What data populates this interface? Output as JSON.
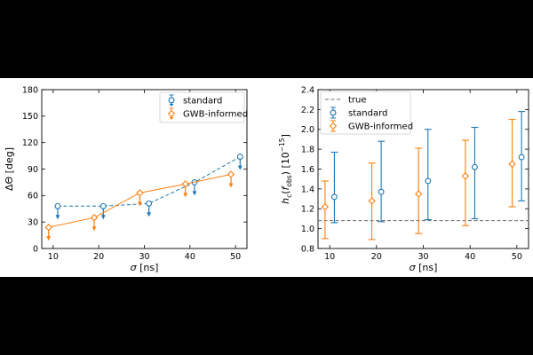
{
  "colors": {
    "standard": "#1f77b4",
    "gwb": "#ff7f0e",
    "true_line": "#666666"
  },
  "chart_data": [
    {
      "type": "line",
      "title": "",
      "xlabel": "σ [ns]",
      "ylabel": "ΔΘ [deg]",
      "xlim": [
        7.5,
        52.5
      ],
      "ylim": [
        0,
        180
      ],
      "xticks": [
        10,
        20,
        30,
        40,
        50
      ],
      "yticks": [
        0,
        30,
        60,
        90,
        120,
        150,
        180
      ],
      "legend": {
        "position": "top-right",
        "entries": [
          "standard",
          "GWB-informed"
        ]
      },
      "upper_limits": true,
      "series": [
        {
          "name": "standard",
          "style": "dashed",
          "x": [
            11,
            21,
            31,
            41,
            51
          ],
          "y": [
            48,
            48,
            51,
            75,
            104
          ]
        },
        {
          "name": "GWB-informed",
          "style": "solid",
          "x": [
            9,
            19,
            29,
            39,
            49
          ],
          "y": [
            24,
            35,
            63,
            73,
            84
          ]
        }
      ]
    },
    {
      "type": "errorbar",
      "title": "",
      "xlabel": "σ [ns]",
      "ylabel": "h_c(f_obs) [10^-15]",
      "xlim": [
        7.5,
        52.5
      ],
      "ylim": [
        0.8,
        2.4
      ],
      "xticks": [
        10,
        20,
        30,
        40,
        50
      ],
      "yticks": [
        0.8,
        1.0,
        1.2,
        1.4,
        1.6,
        1.8,
        2.0,
        2.2,
        2.4
      ],
      "true_value": 1.08,
      "legend": {
        "position": "top-left",
        "entries": [
          "true",
          "standard",
          "GWB-informed"
        ]
      },
      "series": [
        {
          "name": "standard",
          "x": [
            11,
            21,
            31,
            41,
            51
          ],
          "y": [
            1.32,
            1.37,
            1.48,
            1.62,
            1.72
          ],
          "lower": [
            1.06,
            1.07,
            1.09,
            1.1,
            1.28
          ],
          "upper": [
            1.77,
            1.88,
            2.0,
            2.02,
            2.18
          ]
        },
        {
          "name": "GWB-informed",
          "x": [
            9,
            19,
            29,
            39,
            49
          ],
          "y": [
            1.22,
            1.28,
            1.35,
            1.53,
            1.65
          ],
          "lower": [
            0.9,
            0.89,
            0.95,
            1.03,
            1.22
          ],
          "upper": [
            1.48,
            1.66,
            1.81,
            1.89,
            2.1
          ]
        }
      ]
    }
  ]
}
